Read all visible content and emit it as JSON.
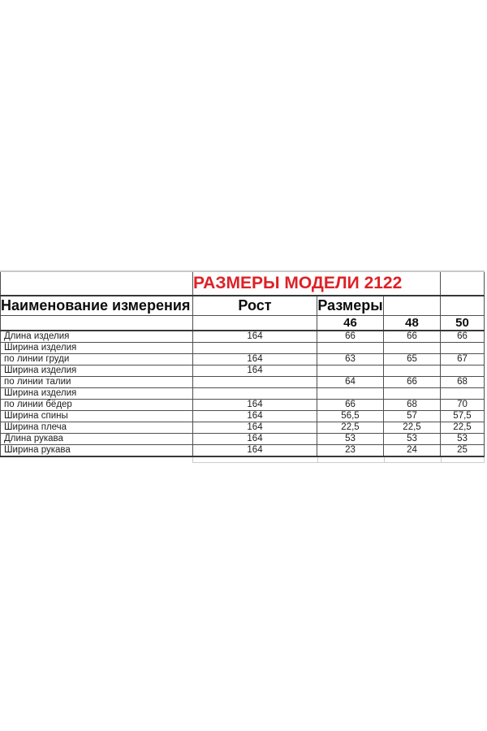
{
  "page": {
    "background_color": "#ffffff"
  },
  "size_table": {
    "title": "РАЗМЕРЫ МОДЕЛИ 2122",
    "title_color": "#dd2127",
    "accent_line_color": "#cfc89a",
    "header": {
      "measurement_name": "Наименование измерения",
      "height": "Рост",
      "sizes": "Размеры"
    },
    "size_labels": {
      "s46": "46",
      "s48": "48",
      "s50": "50"
    },
    "rows": [
      {
        "name": "Длина изделия",
        "rost": "164",
        "s46": "66",
        "s48": "66",
        "s50": "66"
      },
      {
        "name": "Ширина изделия",
        "rost": "",
        "s46": "",
        "s48": "",
        "s50": ""
      },
      {
        "name": "по линии груди",
        "rost": "164",
        "s46": "63",
        "s48": "65",
        "s50": "67"
      },
      {
        "name": "Ширина изделия",
        "rost": "164",
        "s46": "",
        "s48": "",
        "s50": ""
      },
      {
        "name": "по линии талии",
        "rost": "",
        "s46": "64",
        "s48": "66",
        "s50": "68"
      },
      {
        "name": "Ширина изделия",
        "rost": "",
        "s46": "",
        "s48": "",
        "s50": ""
      },
      {
        "name": "по линии бёдер",
        "rost": "164",
        "s46": "66",
        "s48": "68",
        "s50": "70"
      },
      {
        "name": "Ширина спины",
        "rost": "164",
        "s46": "56,5",
        "s48": "57",
        "s50": "57,5"
      },
      {
        "name": "Ширина плеча",
        "rost": "164",
        "s46": "22,5",
        "s48": "22,5",
        "s50": "22,5"
      },
      {
        "name": "Длина рукава",
        "rost": "164",
        "s46": "53",
        "s48": "53",
        "s50": "53"
      },
      {
        "name": "Ширина рукава",
        "rost": "164",
        "s46": "23",
        "s48": "24",
        "s50": "25"
      }
    ]
  }
}
